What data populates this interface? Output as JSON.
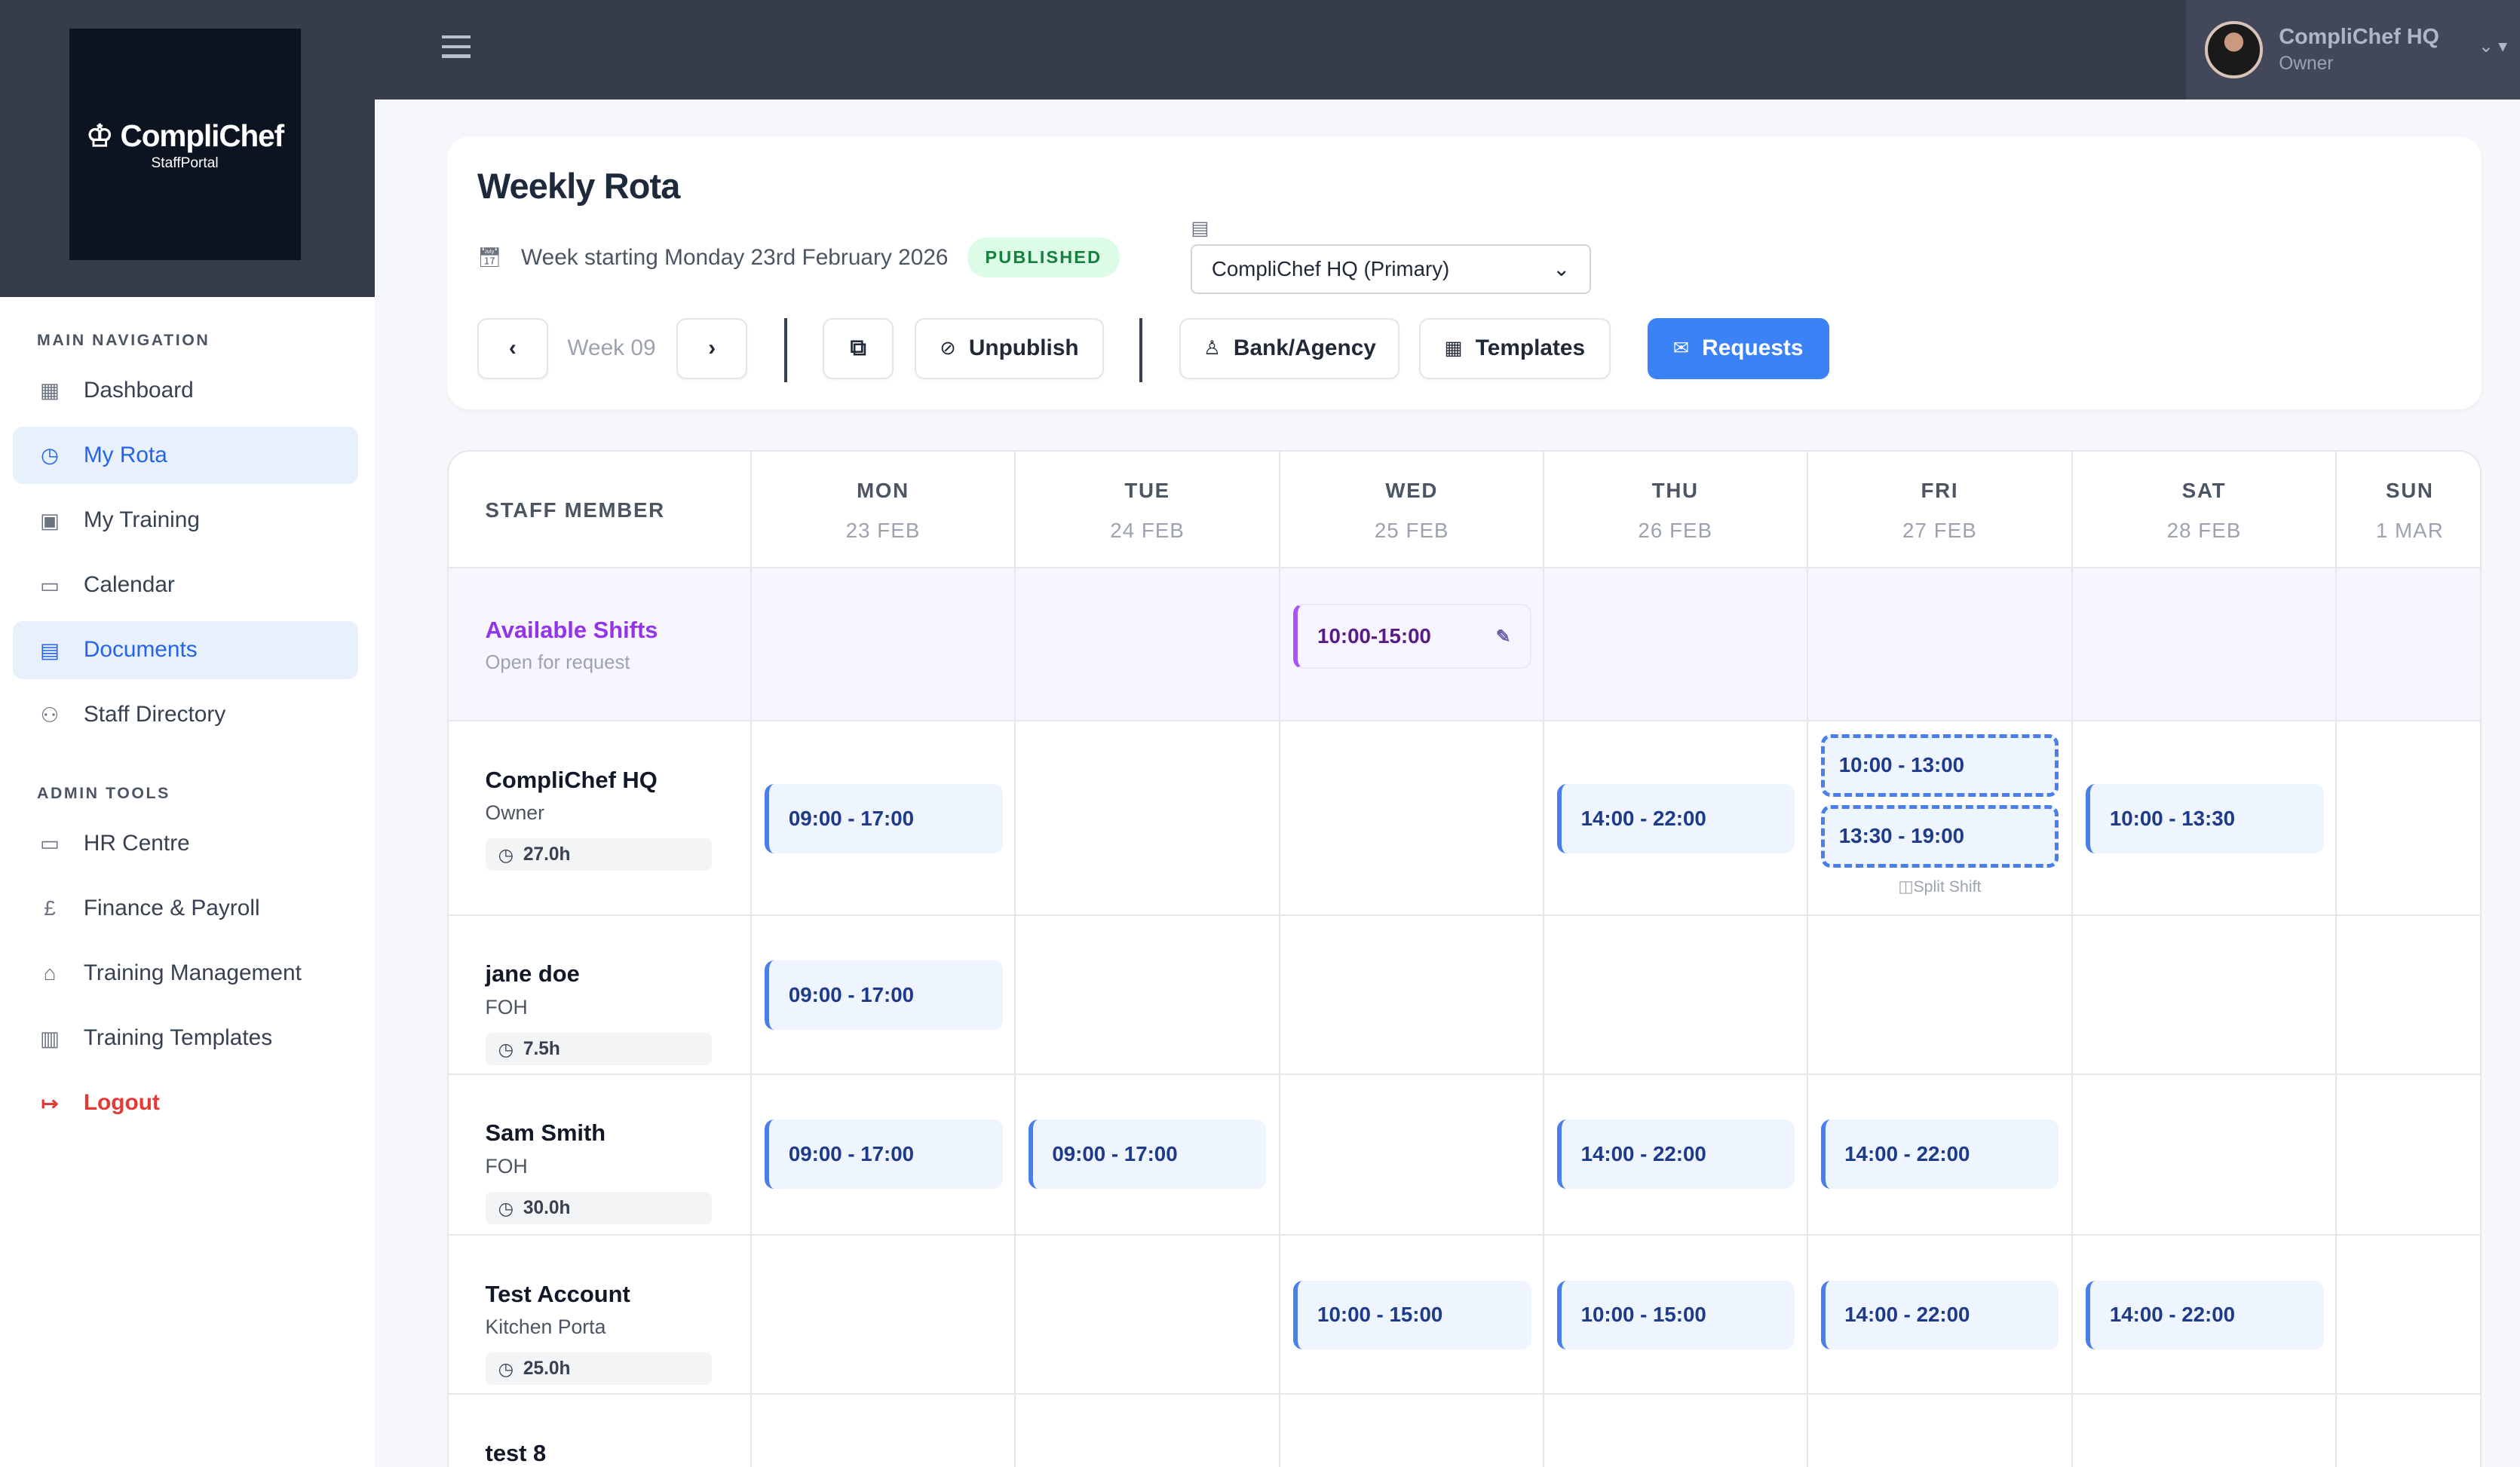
{
  "brand": {
    "name": "CompliChef",
    "sub": "StaffPortal"
  },
  "user": {
    "name": "CompliChef HQ",
    "role": "Owner"
  },
  "sidebar": {
    "main_label": "MAIN NAVIGATION",
    "main": [
      {
        "label": "Dashboard",
        "icon": "grid-icon"
      },
      {
        "label": "My Rota",
        "icon": "clock-icon",
        "active": true
      },
      {
        "label": "My Training",
        "icon": "training-icon"
      },
      {
        "label": "Calendar",
        "icon": "calendar-icon"
      },
      {
        "label": "Documents",
        "icon": "document-icon",
        "active": true
      },
      {
        "label": "Staff Directory",
        "icon": "users-icon"
      }
    ],
    "admin_label": "ADMIN TOOLS",
    "admin": [
      {
        "label": "HR Centre",
        "icon": "briefcase-icon"
      },
      {
        "label": "Finance & Payroll",
        "icon": "pound-icon"
      },
      {
        "label": "Training Management",
        "icon": "graduation-cap-icon"
      },
      {
        "label": "Training Templates",
        "icon": "books-icon"
      },
      {
        "label": "Logout",
        "icon": "logout-icon"
      }
    ]
  },
  "header": {
    "title": "Weekly Rota",
    "week_text": "Week starting Monday 23rd February 2026",
    "status": "PUBLISHED",
    "location": "CompliChef HQ (Primary)",
    "week_label": "Week 09",
    "unpublish": "Unpublish",
    "bank": "Bank/Agency",
    "templates": "Templates",
    "requests": "Requests"
  },
  "colors": {
    "accent": "#3b82f6",
    "open_shift": "#a855f7",
    "published": "#15803d",
    "topbar": "#373c4a"
  },
  "grid": {
    "staff_header": "STAFF MEMBER",
    "days": [
      {
        "name": "MON",
        "date": "23 FEB"
      },
      {
        "name": "TUE",
        "date": "24 FEB"
      },
      {
        "name": "WED",
        "date": "25 FEB"
      },
      {
        "name": "THU",
        "date": "26 FEB"
      },
      {
        "name": "FRI",
        "date": "27 FEB"
      },
      {
        "name": "SAT",
        "date": "28 FEB"
      },
      {
        "name": "SUN",
        "date": "1 MAR"
      }
    ],
    "available": {
      "title": "Available Shifts",
      "subtitle": "Open for request",
      "shifts": [
        null,
        null,
        "10:00-15:00",
        null,
        null,
        null,
        null
      ]
    },
    "split_label": "Split Shift",
    "staff": [
      {
        "name": "CompliChef HQ",
        "role": "Owner",
        "hours": "27.0h",
        "shifts": [
          "09:00 - 17:00",
          null,
          null,
          "14:00 - 22:00",
          [
            "10:00 - 13:00",
            "13:30 - 19:00"
          ],
          "10:00 - 13:30",
          null
        ]
      },
      {
        "name": "jane doe",
        "role": "FOH",
        "hours": "7.5h",
        "shifts": [
          "09:00 - 17:00",
          null,
          null,
          null,
          null,
          null,
          null
        ]
      },
      {
        "name": "Sam Smith",
        "role": "FOH",
        "hours": "30.0h",
        "shifts": [
          "09:00 - 17:00",
          "09:00 - 17:00",
          null,
          "14:00 - 22:00",
          "14:00 - 22:00",
          null,
          null
        ]
      },
      {
        "name": "Test Account",
        "role": "Kitchen Porta",
        "hours": "25.0h",
        "shifts": [
          null,
          null,
          "10:00 - 15:00",
          "10:00 - 15:00",
          "14:00 - 22:00",
          "14:00 - 22:00",
          null
        ]
      },
      {
        "name": "test 8",
        "role": "",
        "hours": "",
        "shifts": [
          null,
          null,
          null,
          null,
          null,
          null,
          null
        ]
      }
    ]
  }
}
